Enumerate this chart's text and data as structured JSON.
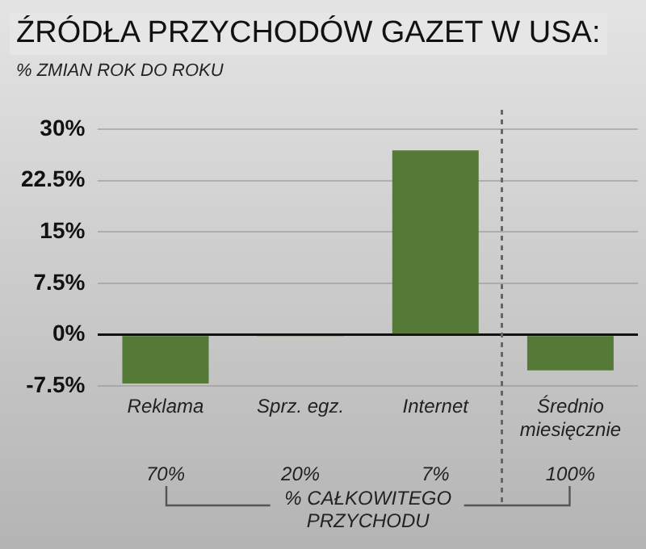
{
  "chart_data": {
    "type": "bar",
    "title": "ŹRÓDŁA PRZYCHODÓW GAZET W USA:",
    "subtitle": "% ZMIAN ROK DO ROKU",
    "categories": [
      "Reklama",
      "Sprz. egz.",
      "Internet",
      "Średnio miesięcznie"
    ],
    "values": [
      -7.1,
      -0.2,
      26.9,
      -5.2
    ],
    "color": "#557a38",
    "ylim": [
      -7.5,
      30
    ],
    "yticks": [
      {
        "value": -7.5,
        "label": "-7.5%"
      },
      {
        "value": 0,
        "label": "0%"
      },
      {
        "value": 7.5,
        "label": "7.5%"
      },
      {
        "value": 15,
        "label": "15%"
      },
      {
        "value": 22.5,
        "label": "22.5%"
      },
      {
        "value": 30,
        "label": "30%"
      }
    ],
    "grid": "y",
    "legend": false,
    "annotations": [
      "70%",
      "20%",
      "7%",
      "100%",
      "% CAŁKOWITEGO PRZYCHODU"
    ]
  }
}
